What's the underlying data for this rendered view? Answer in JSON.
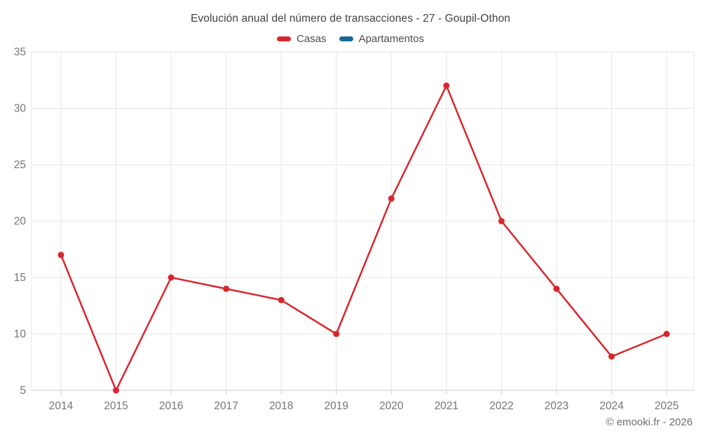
{
  "header": {
    "title": "Evolución anual del número de transacciones - 27 - Goupil-Othon"
  },
  "legend": {
    "items": [
      {
        "label": "Casas",
        "color": "#d9262d"
      },
      {
        "label": "Apartamentos",
        "color": "#17699c"
      }
    ]
  },
  "footer": {
    "credit": "© emooki.fr - 2026"
  },
  "colors": {
    "grid": "#e6e6e6",
    "axis_line": "#c9c9c9",
    "tick": "#cccccc",
    "axis_label": "#757575",
    "background": "#ffffff"
  },
  "chart_data": {
    "type": "line",
    "title": "Evolución anual del número de transacciones - 27 - Goupil-Othon",
    "categories": [
      "2014",
      "2015",
      "2016",
      "2017",
      "2018",
      "2019",
      "2020",
      "2021",
      "2022",
      "2023",
      "2024",
      "2025"
    ],
    "series": [
      {
        "name": "Casas",
        "color": "#d9262d",
        "values": [
          17,
          5,
          15,
          14,
          13,
          10,
          22,
          32,
          20,
          14,
          8,
          10
        ]
      },
      {
        "name": "Apartamentos",
        "color": "#17699c",
        "values": []
      }
    ],
    "xlabel": "",
    "ylabel": "",
    "ylim": [
      5,
      35
    ],
    "yticks": [
      5,
      10,
      15,
      20,
      25,
      30,
      35
    ],
    "grid": true,
    "legend_position": "top"
  }
}
